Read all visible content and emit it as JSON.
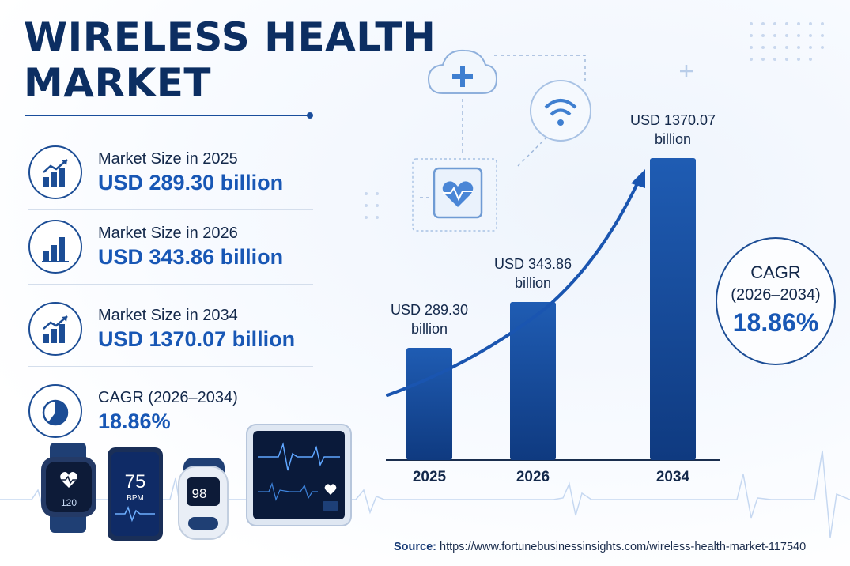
{
  "title_line1": "WIRELESS HEALTH",
  "title_line2": "MARKET",
  "stats": [
    {
      "label": "Market Size in 2025",
      "value": "USD 289.30 billion",
      "icon": "growth-chart-icon"
    },
    {
      "label": "Market Size in 2026",
      "value": "USD 343.86 billion",
      "icon": "bar-chart-icon"
    },
    {
      "label": "Market Size in 2034",
      "value": "USD 1370.07 billion",
      "icon": "growth-chart-icon"
    },
    {
      "label": "CAGR (2026–2034)",
      "value": "18.86%",
      "icon": "pie-chart-icon"
    }
  ],
  "cagr_badge": {
    "label": "CAGR",
    "period": "(2026–2034)",
    "value": "18.86%"
  },
  "devices": {
    "watch_reading": "120",
    "phone_reading": "75",
    "phone_unit": "BPM",
    "oximeter_reading": "98"
  },
  "source": {
    "label": "Source:",
    "url": "https://www.fortunebusinessinsights.com/wireless-health-market-117540"
  },
  "chart_data": {
    "type": "bar",
    "title": "",
    "xlabel": "",
    "ylabel": "",
    "unit": "USD billion",
    "categories": [
      "2025",
      "2026",
      "2034"
    ],
    "values": [
      289.3,
      343.86,
      1370.07
    ],
    "data_labels": [
      [
        "USD 289.30",
        "billion"
      ],
      [
        "USD 343.86",
        "billion"
      ],
      [
        "USD 1370.07",
        "billion"
      ]
    ],
    "grid": false,
    "legend": "none",
    "trend_arrow": true,
    "colors": {
      "bar_top": "#1f5cb3",
      "bar_bottom": "#0f3a80",
      "arrow": "#1a55b0"
    }
  }
}
